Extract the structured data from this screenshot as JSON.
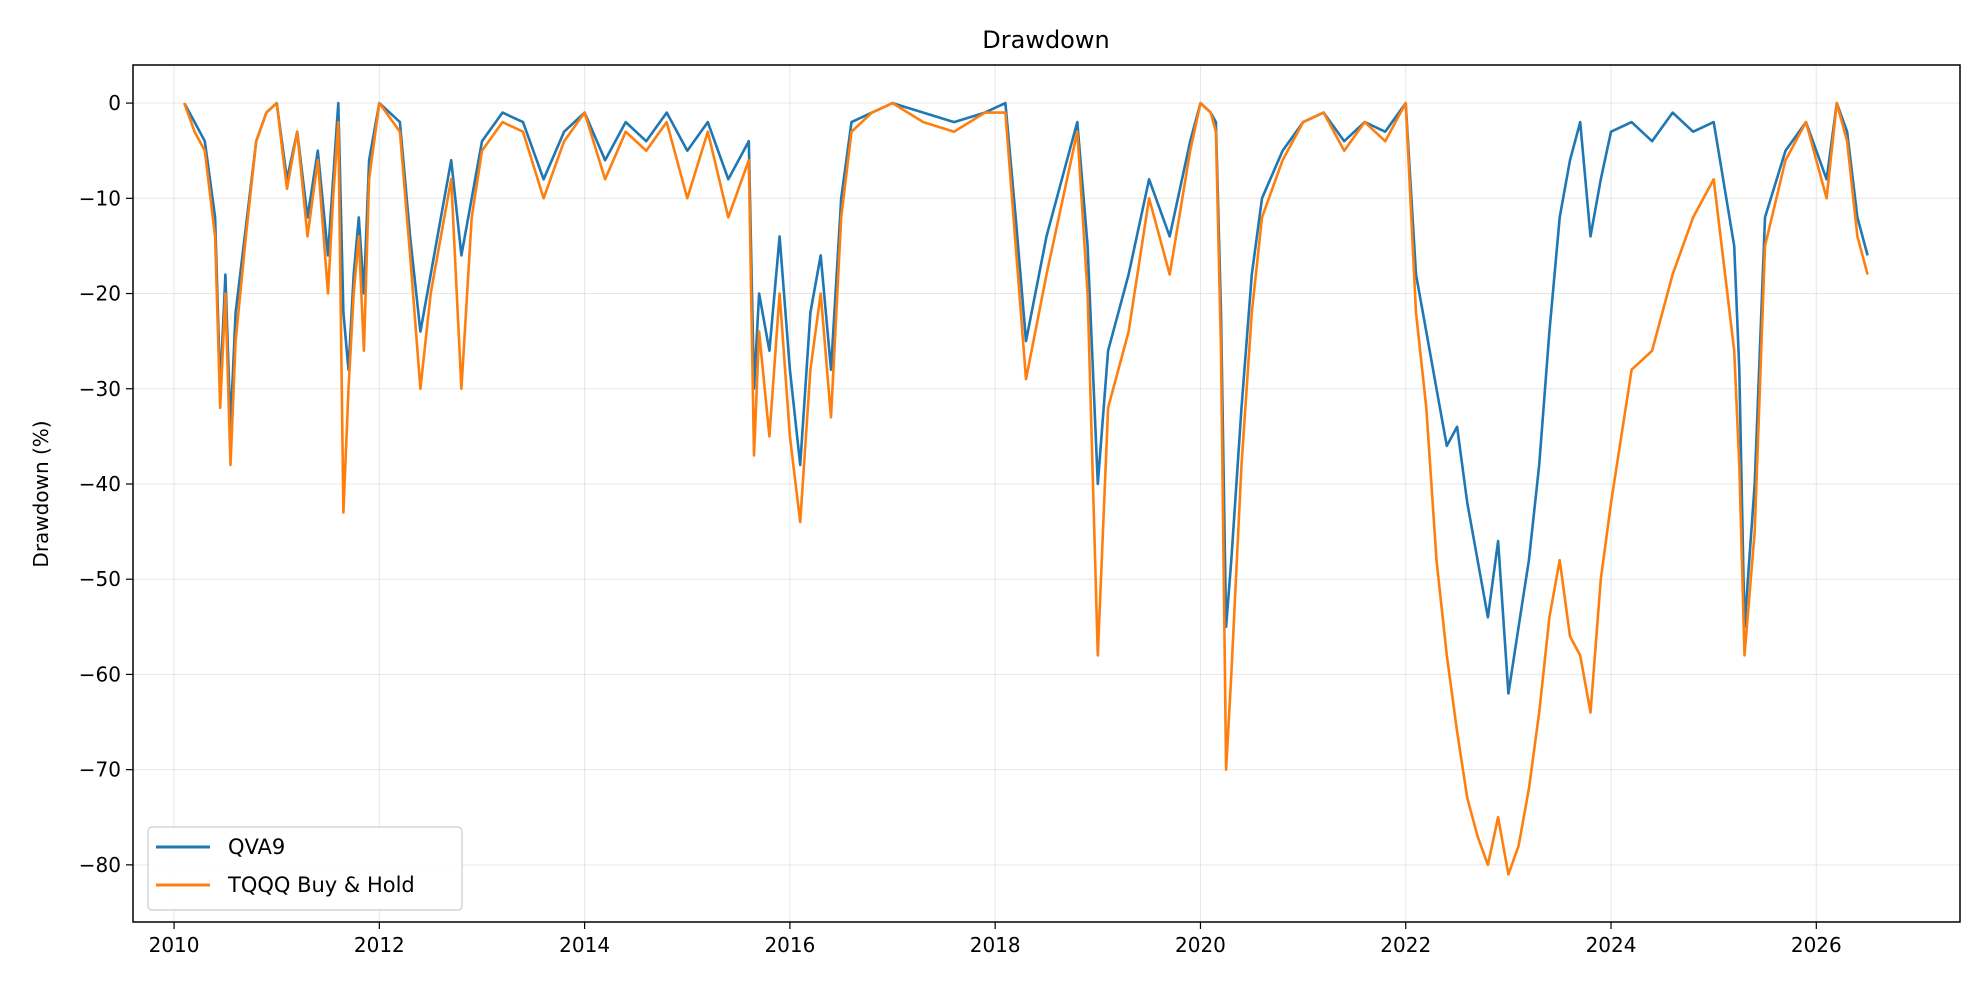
{
  "chart_data": {
    "type": "line",
    "title": "Drawdown",
    "xlabel": "",
    "ylabel": "Drawdown (%)",
    "xlim": [
      2009.6,
      2027.4
    ],
    "ylim": [
      -86,
      4
    ],
    "x_ticks": [
      2010,
      2012,
      2014,
      2016,
      2018,
      2020,
      2022,
      2024,
      2026
    ],
    "x_tick_labels": [
      "2010",
      "2012",
      "2014",
      "2016",
      "2018",
      "2020",
      "2022",
      "2024",
      "2026"
    ],
    "y_ticks": [
      0,
      -10,
      -20,
      -30,
      -40,
      -50,
      -60,
      -70,
      -80
    ],
    "y_tick_labels": [
      "0",
      "−10",
      "−20",
      "−30",
      "−40",
      "−50",
      "−60",
      "−70",
      "−80"
    ],
    "grid": true,
    "legend_position": "lower-left",
    "series": [
      {
        "name": "QVA9",
        "color": "#1f77b4",
        "x": [
          2010.1,
          2010.2,
          2010.3,
          2010.4,
          2010.45,
          2010.5,
          2010.55,
          2010.6,
          2010.7,
          2010.8,
          2010.9,
          2011.0,
          2011.1,
          2011.2,
          2011.3,
          2011.4,
          2011.5,
          2011.55,
          2011.6,
          2011.65,
          2011.7,
          2011.75,
          2011.8,
          2011.85,
          2011.9,
          2012.0,
          2012.2,
          2012.3,
          2012.4,
          2012.5,
          2012.6,
          2012.7,
          2012.8,
          2012.9,
          2013.0,
          2013.2,
          2013.4,
          2013.6,
          2013.8,
          2014.0,
          2014.2,
          2014.4,
          2014.6,
          2014.8,
          2015.0,
          2015.2,
          2015.4,
          2015.6,
          2015.65,
          2015.7,
          2015.8,
          2015.9,
          2016.0,
          2016.1,
          2016.2,
          2016.3,
          2016.4,
          2016.5,
          2016.6,
          2016.8,
          2017.0,
          2017.3,
          2017.6,
          2017.9,
          2018.1,
          2018.2,
          2018.3,
          2018.5,
          2018.7,
          2018.8,
          2018.9,
          2019.0,
          2019.1,
          2019.3,
          2019.5,
          2019.7,
          2019.9,
          2020.0,
          2020.1,
          2020.15,
          2020.2,
          2020.25,
          2020.3,
          2020.4,
          2020.5,
          2020.6,
          2020.8,
          2021.0,
          2021.2,
          2021.4,
          2021.6,
          2021.8,
          2022.0,
          2022.1,
          2022.2,
          2022.3,
          2022.4,
          2022.5,
          2022.6,
          2022.7,
          2022.8,
          2022.9,
          2023.0,
          2023.1,
          2023.2,
          2023.3,
          2023.4,
          2023.5,
          2023.6,
          2023.7,
          2023.8,
          2023.9,
          2024.0,
          2024.2,
          2024.4,
          2024.6,
          2024.8,
          2025.0,
          2025.2,
          2025.25,
          2025.3,
          2025.4,
          2025.5,
          2025.7,
          2025.9,
          2026.1,
          2026.2,
          2026.3,
          2026.4,
          2026.5
        ],
        "values": [
          0,
          -2,
          -4,
          -12,
          -30,
          -18,
          -34,
          -22,
          -13,
          -4,
          -1,
          0,
          -8,
          -3,
          -12,
          -5,
          -16,
          -8,
          0,
          -22,
          -28,
          -18,
          -12,
          -20,
          -6,
          0,
          -2,
          -14,
          -24,
          -18,
          -12,
          -6,
          -16,
          -10,
          -4,
          -1,
          -2,
          -8,
          -3,
          -1,
          -6,
          -2,
          -4,
          -1,
          -5,
          -2,
          -8,
          -4,
          -30,
          -20,
          -26,
          -14,
          -28,
          -38,
          -22,
          -16,
          -28,
          -10,
          -2,
          -1,
          0,
          -1,
          -2,
          -1,
          0,
          -12,
          -25,
          -14,
          -6,
          -2,
          -15,
          -40,
          -26,
          -18,
          -8,
          -14,
          -4,
          0,
          -1,
          -2,
          -22,
          -55,
          -48,
          -32,
          -18,
          -10,
          -5,
          -2,
          -1,
          -4,
          -2,
          -3,
          0,
          -18,
          -24,
          -30,
          -36,
          -34,
          -42,
          -48,
          -54,
          -46,
          -62,
          -55,
          -48,
          -38,
          -24,
          -12,
          -6,
          -2,
          -14,
          -8,
          -3,
          -2,
          -4,
          -1,
          -3,
          -2,
          -15,
          -28,
          -55,
          -40,
          -12,
          -5,
          -2,
          -8,
          0,
          -3,
          -12,
          -16
        ]
      },
      {
        "name": "TQQQ Buy & Hold",
        "color": "#ff7f0e",
        "x": [
          2010.1,
          2010.2,
          2010.3,
          2010.4,
          2010.45,
          2010.5,
          2010.55,
          2010.6,
          2010.7,
          2010.8,
          2010.9,
          2011.0,
          2011.1,
          2011.2,
          2011.3,
          2011.4,
          2011.5,
          2011.55,
          2011.6,
          2011.65,
          2011.7,
          2011.75,
          2011.8,
          2011.85,
          2011.9,
          2012.0,
          2012.2,
          2012.3,
          2012.4,
          2012.5,
          2012.6,
          2012.7,
          2012.8,
          2012.9,
          2013.0,
          2013.2,
          2013.4,
          2013.6,
          2013.8,
          2014.0,
          2014.2,
          2014.4,
          2014.6,
          2014.8,
          2015.0,
          2015.2,
          2015.4,
          2015.6,
          2015.65,
          2015.7,
          2015.8,
          2015.9,
          2016.0,
          2016.1,
          2016.2,
          2016.3,
          2016.4,
          2016.5,
          2016.6,
          2016.8,
          2017.0,
          2017.3,
          2017.6,
          2017.9,
          2018.1,
          2018.2,
          2018.3,
          2018.5,
          2018.7,
          2018.8,
          2018.9,
          2019.0,
          2019.1,
          2019.3,
          2019.5,
          2019.7,
          2019.9,
          2020.0,
          2020.1,
          2020.15,
          2020.2,
          2020.25,
          2020.3,
          2020.4,
          2020.5,
          2020.6,
          2020.8,
          2021.0,
          2021.2,
          2021.4,
          2021.6,
          2021.8,
          2022.0,
          2022.1,
          2022.2,
          2022.3,
          2022.4,
          2022.5,
          2022.6,
          2022.7,
          2022.8,
          2022.9,
          2023.0,
          2023.1,
          2023.2,
          2023.3,
          2023.4,
          2023.5,
          2023.6,
          2023.7,
          2023.8,
          2023.9,
          2024.0,
          2024.2,
          2024.4,
          2024.6,
          2024.8,
          2025.0,
          2025.2,
          2025.25,
          2025.3,
          2025.4,
          2025.5,
          2025.7,
          2025.9,
          2026.1,
          2026.2,
          2026.3,
          2026.4,
          2026.5
        ],
        "values": [
          0,
          -3,
          -5,
          -14,
          -32,
          -20,
          -38,
          -25,
          -14,
          -4,
          -1,
          0,
          -9,
          -3,
          -14,
          -6,
          -20,
          -10,
          -2,
          -43,
          -30,
          -20,
          -14,
          -26,
          -8,
          0,
          -3,
          -16,
          -30,
          -20,
          -14,
          -8,
          -30,
          -12,
          -5,
          -2,
          -3,
          -10,
          -4,
          -1,
          -8,
          -3,
          -5,
          -2,
          -10,
          -3,
          -12,
          -6,
          -37,
          -24,
          -35,
          -20,
          -35,
          -44,
          -28,
          -20,
          -33,
          -12,
          -3,
          -1,
          0,
          -2,
          -3,
          -1,
          -1,
          -15,
          -29,
          -18,
          -8,
          -3,
          -20,
          -58,
          -32,
          -24,
          -10,
          -18,
          -5,
          0,
          -1,
          -3,
          -26,
          -70,
          -60,
          -38,
          -22,
          -12,
          -6,
          -2,
          -1,
          -5,
          -2,
          -4,
          0,
          -22,
          -32,
          -48,
          -58,
          -66,
          -73,
          -77,
          -80,
          -75,
          -81,
          -78,
          -72,
          -64,
          -54,
          -48,
          -56,
          -58,
          -64,
          -50,
          -42,
          -28,
          -26,
          -18,
          -12,
          -8,
          -26,
          -38,
          -58,
          -45,
          -15,
          -6,
          -2,
          -10,
          0,
          -4,
          -14,
          -18
        ]
      }
    ]
  }
}
